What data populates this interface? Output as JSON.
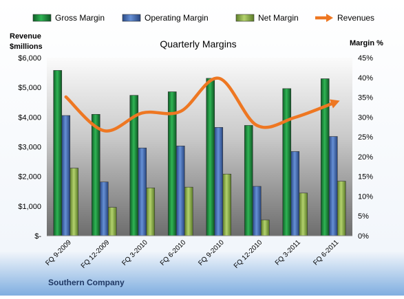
{
  "chart_data": {
    "type": "bar",
    "title": "Quarterly Margins",
    "company": "Southern Company",
    "left_axis": {
      "label_line1": "Revenue",
      "label_line2": "$millions",
      "range": [
        0,
        6000
      ],
      "ticks": [
        "$-",
        "$1,000",
        "$2,000",
        "$3,000",
        "$4,000",
        "$5,000",
        "$6,000"
      ]
    },
    "right_axis": {
      "label": "Margin %",
      "range": [
        0,
        45
      ],
      "ticks": [
        "0%",
        "5%",
        "10%",
        "15%",
        "20%",
        "25%",
        "30%",
        "35%",
        "40%",
        "45%"
      ]
    },
    "categories": [
      "FQ 9-2009",
      "FQ 12-2009",
      "FQ 3-2010",
      "FQ 6-2010",
      "FQ 9-2010",
      "FQ 12-2010",
      "FQ 3-2011",
      "FQ 6-2011"
    ],
    "series": [
      {
        "name": "Gross Margin",
        "type": "bar",
        "axis": "right",
        "color": "#1a7f3a",
        "values": [
          41.8,
          30.7,
          35.5,
          36.4,
          39.8,
          27.9,
          37.2,
          39.7
        ]
      },
      {
        "name": "Operating Margin",
        "type": "bar",
        "axis": "right",
        "color": "#3f67b0",
        "values": [
          30.4,
          13.6,
          22.2,
          22.7,
          27.4,
          12.5,
          21.3,
          25.1
        ]
      },
      {
        "name": "Net Margin",
        "type": "bar",
        "axis": "right",
        "color": "#8db34a",
        "values": [
          17.1,
          7.2,
          12.1,
          12.3,
          15.6,
          4.0,
          10.8,
          13.8
        ]
      },
      {
        "name": "Revenues",
        "type": "line",
        "axis": "left",
        "color": "#ee7722",
        "values": [
          4680,
          3540,
          4140,
          4190,
          5310,
          3720,
          3990,
          4470
        ]
      }
    ],
    "legend_position": "top",
    "grid": false
  }
}
